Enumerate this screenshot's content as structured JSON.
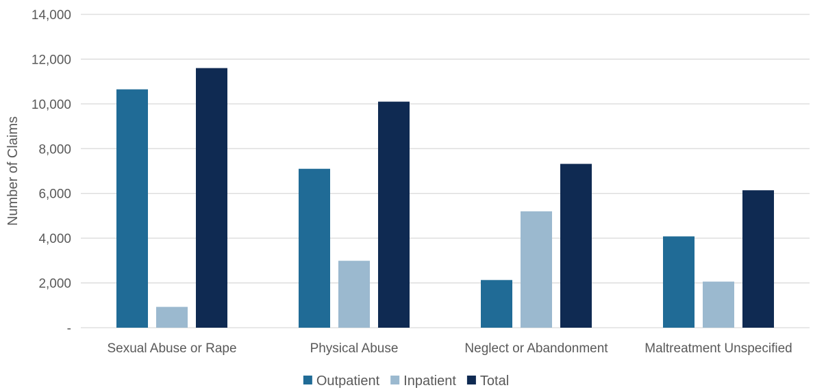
{
  "chart_data": {
    "type": "bar",
    "ylabel": "Number of Claims",
    "ylim": [
      0,
      14000
    ],
    "y_ticks": [
      {
        "value": 0,
        "label": "-"
      },
      {
        "value": 2000,
        "label": "2,000"
      },
      {
        "value": 4000,
        "label": "4,000"
      },
      {
        "value": 6000,
        "label": "6,000"
      },
      {
        "value": 8000,
        "label": "8,000"
      },
      {
        "value": 10000,
        "label": "10,000"
      },
      {
        "value": 12000,
        "label": "12,000"
      },
      {
        "value": 14000,
        "label": "14,000"
      }
    ],
    "grid": true,
    "legend_position": "bottom",
    "categories": [
      "Sexual Abuse or Rape",
      "Physical Abuse",
      "Neglect or Abandonment",
      "Maltreatment Unspecified"
    ],
    "series": [
      {
        "name": "Outpatient",
        "color": "#206b96",
        "values": [
          10650,
          7100,
          2130,
          4080
        ]
      },
      {
        "name": "Inpatient",
        "color": "#9bb9cf",
        "values": [
          930,
          2990,
          5200,
          2060
        ]
      },
      {
        "name": "Total",
        "color": "#0f2a52",
        "values": [
          11600,
          10100,
          7320,
          6140
        ]
      }
    ],
    "gridline_color": "#d9d9d9"
  }
}
